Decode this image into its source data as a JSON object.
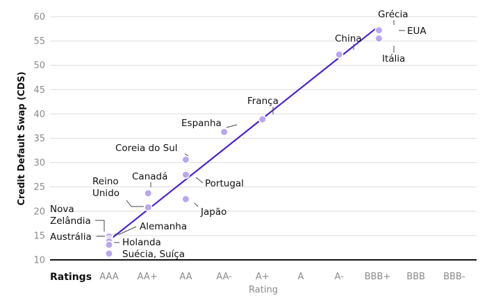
{
  "colors": {
    "point": "#b9a6f0",
    "trend": "#4a1fd8"
  },
  "chart_data": {
    "type": "scatter",
    "title": "",
    "xlabel": "Rating",
    "x_header": "Ratings",
    "ylabel": "Credit Default Swap (CDS)",
    "ylim": [
      10,
      60
    ],
    "yticks": [
      10,
      15,
      20,
      25,
      30,
      35,
      40,
      45,
      50,
      55,
      60
    ],
    "categories": [
      "AAA",
      "AA+",
      "AA",
      "AA-",
      "A+",
      "A",
      "A-",
      "BBB+",
      "BBB",
      "BBB-"
    ],
    "grid": true,
    "points": [
      {
        "label": "Nova Zelândia",
        "x": "AAA",
        "y": 14.8
      },
      {
        "label": "Austrália",
        "x": "AAA",
        "y": 14.2
      },
      {
        "label": "Alemanha",
        "x": "AAA",
        "y": 13.8
      },
      {
        "label": "Holanda",
        "x": "AAA",
        "y": 13.1
      },
      {
        "label": "Suécia, Suíça",
        "x": "AAA",
        "y": 11.3
      },
      {
        "label": "Reino Unido",
        "x": "AA+",
        "y": 20.8
      },
      {
        "label": "Canadá",
        "x": "AA+",
        "y": 23.7
      },
      {
        "label": "Coreia do Sul",
        "x": "AA",
        "y": 30.6
      },
      {
        "label": "Portugal",
        "x": "AA",
        "y": 27.5
      },
      {
        "label": "Japão",
        "x": "AA",
        "y": 22.5
      },
      {
        "label": "Espanha",
        "x": "AA-",
        "y": 36.3
      },
      {
        "label": "França",
        "x": "A+",
        "y": 38.9
      },
      {
        "label": "China",
        "x": "A-",
        "y": 52.2
      },
      {
        "label": "Grécia",
        "x": "BBB+",
        "y": 57.2
      },
      {
        "label": "EUA",
        "x": "BBB+",
        "y": 57.2
      },
      {
        "label": "Itália",
        "x": "BBB+",
        "y": 55.5
      }
    ],
    "trendline": {
      "x_start": "AAA",
      "y_start": 14.0,
      "x_end": "BBB+",
      "y_end": 57.5
    }
  }
}
